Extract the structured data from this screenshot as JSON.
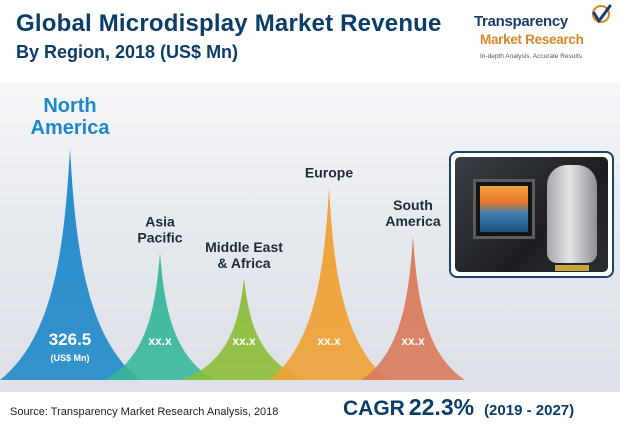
{
  "header": {
    "title_line1": "Global Microdisplay Market Revenue",
    "title_line2": "By Region, 2018 (US$ Mn)"
  },
  "logo": {
    "brand_line1": "Transparency",
    "brand_line2": "Market Research",
    "tagline": "In-depth Analysis. Accurate Results"
  },
  "chart_data": {
    "type": "area",
    "title": "Global Microdisplay Market Revenue By Region, 2018 (US$ Mn)",
    "categories": [
      "North America",
      "Asia Pacific",
      "Middle East & Africa",
      "Europe",
      "South America"
    ],
    "label_lines": [
      [
        "North",
        "America"
      ],
      [
        "Asia",
        "Pacific"
      ],
      [
        "Middle East",
        "& Africa"
      ],
      [
        "Europe"
      ],
      [
        "South",
        "America"
      ]
    ],
    "value_labels": [
      "326.5",
      "xx.x",
      "xx.x",
      "xx.x",
      "xx.x"
    ],
    "values": [
      326.5,
      null,
      null,
      null,
      null
    ],
    "value_unit": "(US$ Mn)",
    "relative_heights": [
      1.0,
      0.55,
      0.44,
      0.83,
      0.62
    ],
    "colors": [
      "#1e88c9",
      "#37b79a",
      "#8cbd3a",
      "#f0a032",
      "#d9795a"
    ],
    "label_colors": [
      "#1e88c9",
      "#1f2b36",
      "#1f2b36",
      "#1f2b36",
      "#1f2b36"
    ]
  },
  "footer": {
    "source": "Source: Transparency Market Research Analysis, 2018",
    "cagr_label": "CAGR",
    "cagr_value": "22.3%",
    "cagr_period": "(2019 - 2027)"
  }
}
